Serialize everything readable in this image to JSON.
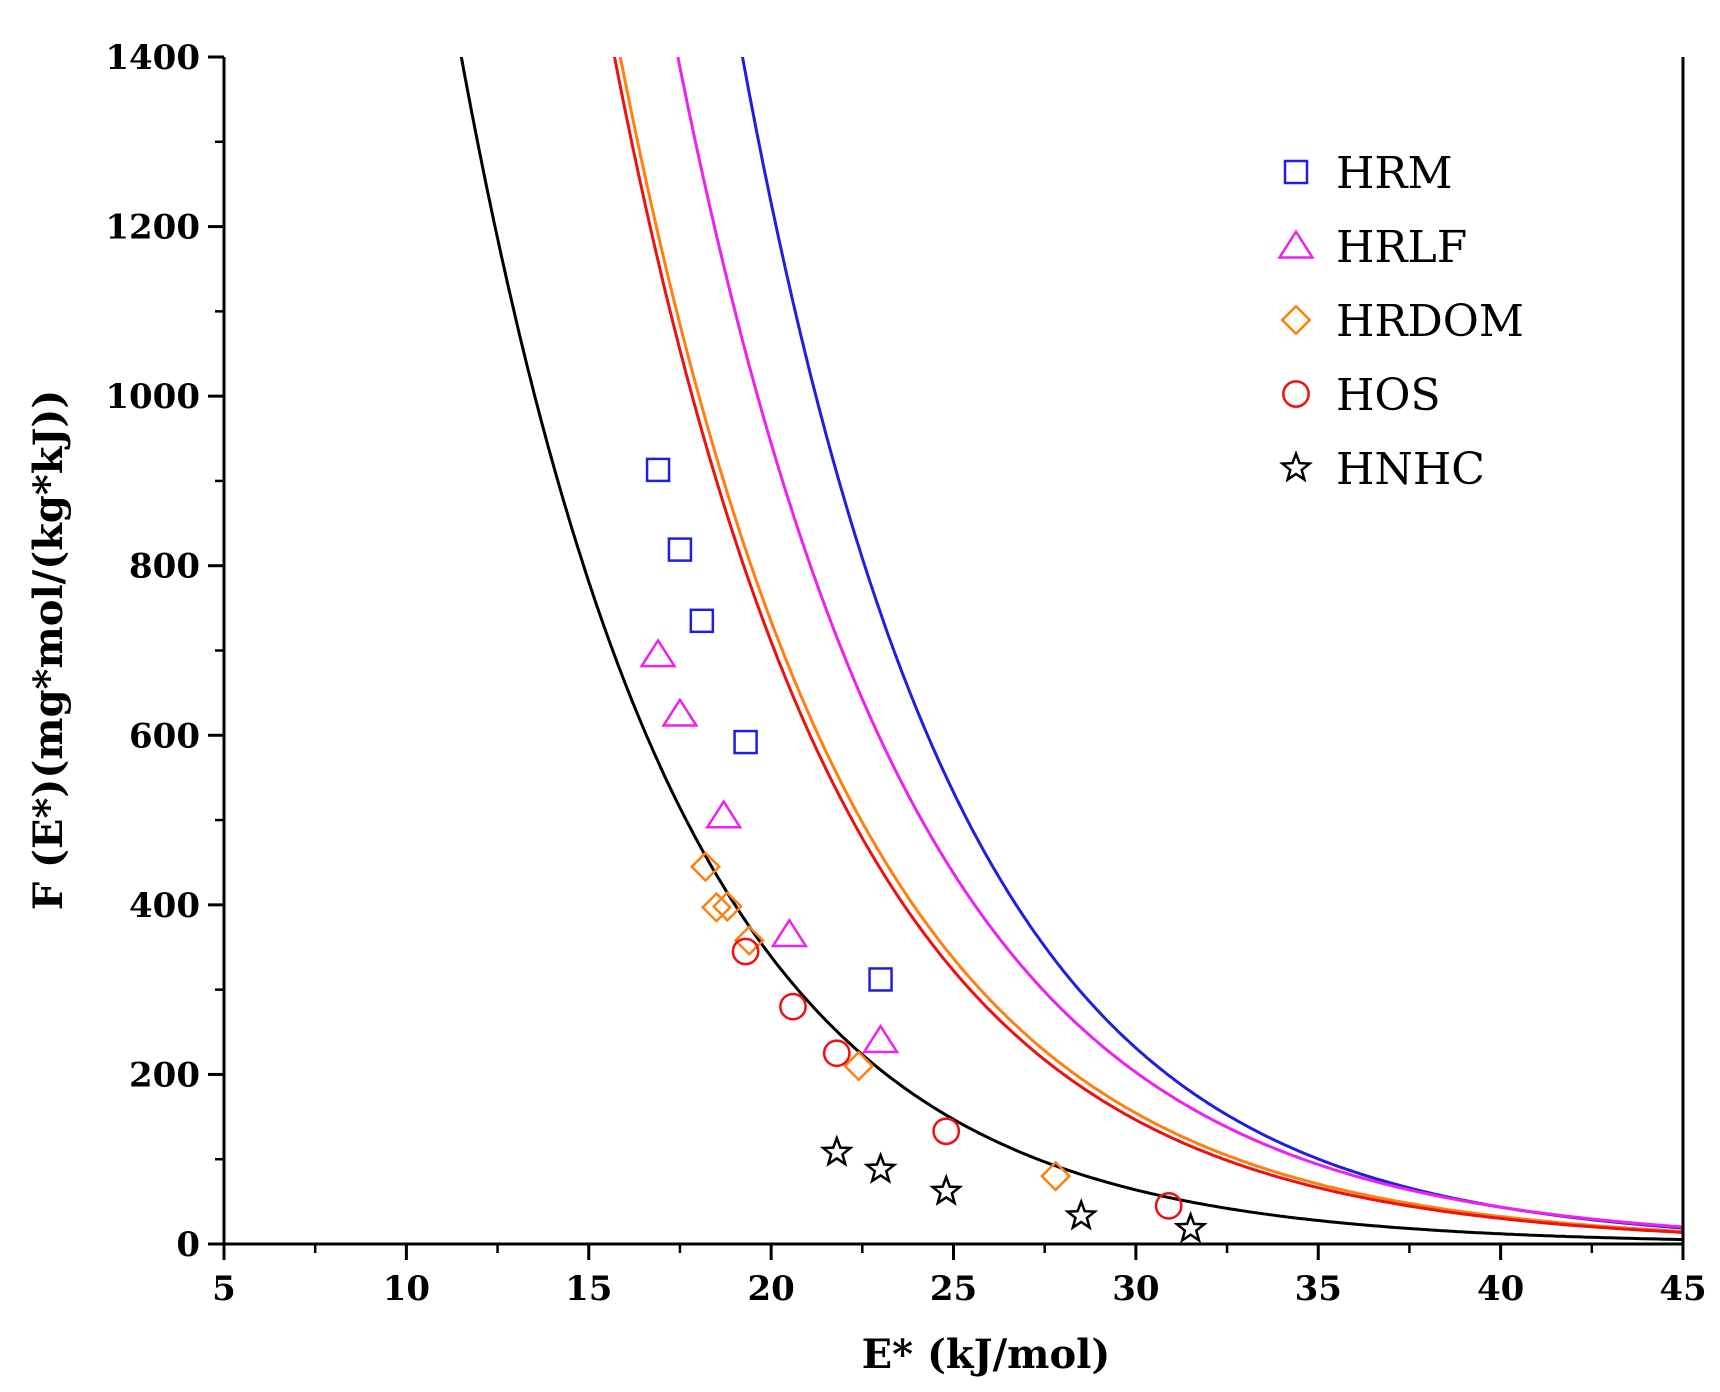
{
  "chart_data": {
    "type": "scatter",
    "title": "",
    "xlabel": "E* (kJ/mol)",
    "ylabel": "F (E*)(mg*mol/(kg*kJ))",
    "xlim": [
      5,
      45
    ],
    "ylim": [
      0,
      1400
    ],
    "xticks": [
      5,
      10,
      15,
      20,
      25,
      30,
      35,
      40,
      45
    ],
    "xtick_labels": [
      "5",
      "10",
      "15",
      "20",
      "25",
      "30",
      "35",
      "40",
      "45"
    ],
    "yticks": [
      0,
      200,
      400,
      600,
      800,
      1000,
      1200,
      1400
    ],
    "ytick_labels": [
      "0",
      "200",
      "400",
      "600",
      "800",
      "1000",
      "1200",
      "1400"
    ],
    "grid": false,
    "legend_position": "top-right",
    "series": [
      {
        "name": "HRM",
        "color": "#1f1fe0",
        "marker": "square",
        "points": [
          [
            16.9,
            913
          ],
          [
            17.5,
            819
          ],
          [
            18.1,
            735
          ],
          [
            19.3,
            592
          ],
          [
            23.0,
            312
          ]
        ],
        "fit": {
          "a": 15035,
          "b": 0.167
        }
      },
      {
        "name": "HRLF",
        "color": "#ee22ee",
        "marker": "triangle",
        "points": [
          [
            16.9,
            695
          ],
          [
            17.5,
            625
          ],
          [
            18.7,
            505
          ],
          [
            20.5,
            365
          ],
          [
            23.0,
            240
          ]
        ],
        "fit": {
          "a": 9515,
          "b": 0.154
        }
      },
      {
        "name": "HRDOM",
        "color": "#ff7f10",
        "marker": "diamond",
        "points": [
          [
            18.2,
            445
          ],
          [
            18.5,
            397
          ],
          [
            18.8,
            398
          ],
          [
            19.4,
            358
          ],
          [
            22.4,
            210
          ],
          [
            27.8,
            80
          ]
        ],
        "fit": {
          "a": 7625,
          "b": 0.156
        }
      },
      {
        "name": "HOS",
        "color": "#ee1111",
        "marker": "circle",
        "points": [
          [
            19.3,
            345
          ],
          [
            20.6,
            280
          ],
          [
            21.8,
            225
          ],
          [
            24.8,
            133
          ],
          [
            30.9,
            45
          ]
        ],
        "fit": {
          "a": 7600,
          "b": 0.158
        }
      },
      {
        "name": "HNHC",
        "color": "#000000",
        "marker": "star",
        "points": [
          [
            21.8,
            108
          ],
          [
            23.0,
            88
          ],
          [
            24.8,
            62
          ],
          [
            28.5,
            33
          ],
          [
            31.5,
            18
          ]
        ],
        "fit": {
          "a": 4150,
          "b": 0.167
        }
      }
    ]
  }
}
